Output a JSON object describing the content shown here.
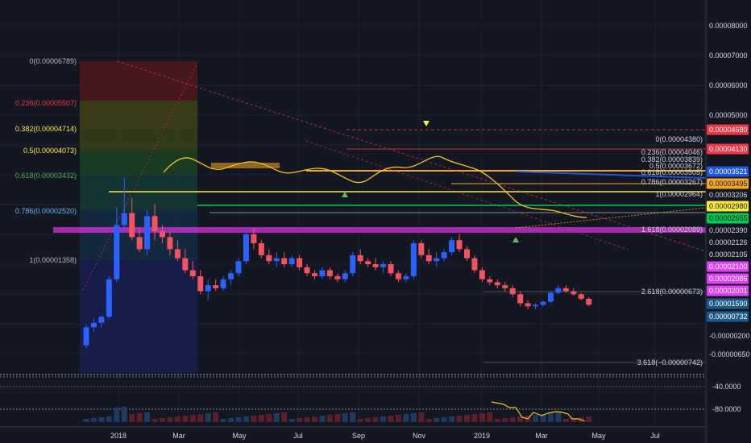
{
  "chart_data": {
    "type": "candlestick",
    "x_labels": [
      "2018",
      "Mar",
      "May",
      "Jul",
      "Sep",
      "Nov",
      "2019",
      "Mar",
      "May",
      "Jul"
    ],
    "y_tick_labels": [
      "0.00008000",
      "0.00007000",
      "0.00006000",
      "0.00005000",
      "-0.00000200",
      "-0.00000650"
    ],
    "price_tags": [
      {
        "text": "0.00004680",
        "color": "#f23645"
      },
      {
        "text": "0.00004130",
        "color": "#f23645"
      },
      {
        "text": "0.00003521",
        "color": "#1e53e5"
      },
      {
        "text": "0.00003495",
        "color": "#f5a623"
      },
      {
        "text": "0.00003206",
        "color": "#131722"
      },
      {
        "text": "0.00002980",
        "color": "#ffeb3b"
      },
      {
        "text": "0.00002655",
        "color": "#00c853"
      },
      {
        "text": "0.00002390",
        "color": "#131722"
      },
      {
        "text": "0.00002126",
        "color": "#131722"
      },
      {
        "text": "0.00002105",
        "color": "#131722"
      },
      {
        "text": "0.00002100",
        "color": "#e040fb"
      },
      {
        "text": "0.00002086",
        "color": "#e040fb"
      },
      {
        "text": "0.00002001",
        "color": "#e040fb"
      },
      {
        "text": "0.00001590",
        "color": "#1c5a8a"
      },
      {
        "text": "0.00000732",
        "color": "#1c5a8a"
      }
    ],
    "fib_left": [
      {
        "text": "0(0.00006789)",
        "color": "#b2b5be"
      },
      {
        "text": "0.236(0.00005507)",
        "color": "#f23645"
      },
      {
        "text": "0.382(0.00004714)",
        "color": "#ffeb3b"
      },
      {
        "text": "0.5(0.00004073)",
        "color": "#ffeb3b"
      },
      {
        "text": "0.618(0.00003432)",
        "color": "#4caf50"
      },
      {
        "text": "0.786(0.00002520)",
        "color": "#64b5f6"
      },
      {
        "text": "1(0.00001358)",
        "color": "#b2b5be"
      }
    ],
    "fib_right": [
      {
        "text": "0(0.00004380)"
      },
      {
        "text": "0.236(0.00004046)"
      },
      {
        "text": "0.382(0.00003839)"
      },
      {
        "text": "0.5(0.00003672)"
      },
      {
        "text": "0.618(0.00003505)"
      },
      {
        "text": "0.786(0.00003267)"
      },
      {
        "text": "1(0.00002964)"
      },
      {
        "text": "1.618(0.00002089)"
      },
      {
        "text": "2.618(0.00000673)"
      },
      {
        "text": "3.618(−0.00000742)"
      }
    ],
    "indicator_ticks": [
      "-40.0000",
      "-80.0000"
    ],
    "ohlc": [
      [
        1.1,
        1.8,
        1.0,
        1.7
      ],
      [
        1.7,
        2.0,
        1.55,
        1.85
      ],
      [
        1.85,
        2.1,
        1.7,
        2.05
      ],
      [
        2.05,
        3.4,
        2.0,
        3.3
      ],
      [
        3.3,
        5.7,
        3.2,
        5.1
      ],
      [
        5.1,
        6.7,
        4.9,
        5.5
      ],
      [
        5.5,
        6.0,
        4.6,
        4.7
      ],
      [
        4.7,
        5.0,
        4.2,
        4.3
      ],
      [
        4.3,
        5.6,
        4.1,
        5.4
      ],
      [
        5.4,
        5.8,
        4.6,
        4.9
      ],
      [
        4.9,
        5.1,
        4.5,
        4.7
      ],
      [
        4.7,
        4.9,
        4.1,
        4.3
      ],
      [
        4.3,
        4.6,
        3.9,
        4.0
      ],
      [
        4.0,
        4.3,
        3.5,
        3.6
      ],
      [
        3.6,
        3.9,
        3.3,
        3.4
      ],
      [
        3.4,
        3.6,
        2.8,
        2.9
      ],
      [
        2.9,
        3.3,
        2.6,
        3.1
      ],
      [
        3.1,
        3.3,
        2.9,
        3.0
      ],
      [
        3.0,
        3.4,
        2.9,
        3.3
      ],
      [
        3.3,
        3.6,
        3.1,
        3.5
      ],
      [
        3.5,
        4.0,
        3.4,
        3.9
      ],
      [
        3.9,
        4.9,
        3.8,
        4.8
      ],
      [
        4.8,
        5.0,
        4.3,
        4.5
      ],
      [
        4.5,
        4.6,
        4.0,
        4.1
      ],
      [
        4.1,
        4.3,
        3.8,
        3.9
      ],
      [
        3.9,
        4.2,
        3.7,
        4.0
      ],
      [
        4.0,
        4.2,
        3.7,
        3.8
      ],
      [
        3.8,
        4.1,
        3.7,
        4.0
      ],
      [
        4.0,
        4.1,
        3.6,
        3.7
      ],
      [
        3.7,
        3.8,
        3.4,
        3.5
      ],
      [
        3.5,
        3.6,
        3.3,
        3.4
      ],
      [
        3.4,
        3.7,
        3.3,
        3.6
      ],
      [
        3.6,
        3.7,
        3.3,
        3.4
      ],
      [
        3.4,
        3.5,
        3.2,
        3.3
      ],
      [
        3.3,
        3.6,
        3.2,
        3.5
      ],
      [
        3.5,
        4.2,
        3.4,
        4.1
      ],
      [
        4.1,
        4.3,
        3.8,
        3.9
      ],
      [
        3.9,
        4.0,
        3.7,
        3.8
      ],
      [
        3.8,
        4.0,
        3.6,
        3.7
      ],
      [
        3.7,
        3.9,
        3.5,
        3.8
      ],
      [
        3.8,
        3.9,
        3.4,
        3.5
      ],
      [
        3.5,
        3.6,
        3.2,
        3.3
      ],
      [
        3.3,
        3.5,
        3.2,
        3.4
      ],
      [
        3.4,
        4.6,
        3.3,
        4.5
      ],
      [
        4.5,
        4.6,
        4.0,
        4.1
      ],
      [
        4.1,
        4.3,
        3.8,
        3.9
      ],
      [
        3.9,
        4.2,
        3.7,
        4.0
      ],
      [
        4.0,
        4.3,
        3.9,
        4.2
      ],
      [
        4.2,
        4.7,
        4.1,
        4.6
      ],
      [
        4.6,
        4.8,
        4.2,
        4.3
      ],
      [
        4.3,
        4.4,
        3.9,
        4.0
      ],
      [
        4.0,
        4.1,
        3.5,
        3.6
      ],
      [
        3.6,
        3.7,
        3.2,
        3.3
      ],
      [
        3.3,
        3.4,
        3.1,
        3.2
      ],
      [
        3.2,
        3.3,
        3.0,
        3.1
      ],
      [
        3.1,
        3.2,
        2.9,
        3.0
      ],
      [
        3.0,
        3.1,
        2.7,
        2.8
      ],
      [
        2.8,
        2.9,
        2.4,
        2.5
      ],
      [
        2.5,
        2.6,
        2.3,
        2.4
      ],
      [
        2.4,
        2.5,
        2.3,
        2.45
      ],
      [
        2.45,
        2.6,
        2.4,
        2.55
      ],
      [
        2.55,
        2.9,
        2.5,
        2.85
      ],
      [
        2.85,
        3.1,
        2.8,
        3.0
      ],
      [
        3.0,
        3.1,
        2.85,
        2.9
      ],
      [
        2.9,
        3.0,
        2.75,
        2.8
      ],
      [
        2.8,
        2.85,
        2.6,
        2.65
      ],
      [
        2.65,
        2.7,
        2.4,
        2.45
      ]
    ]
  }
}
